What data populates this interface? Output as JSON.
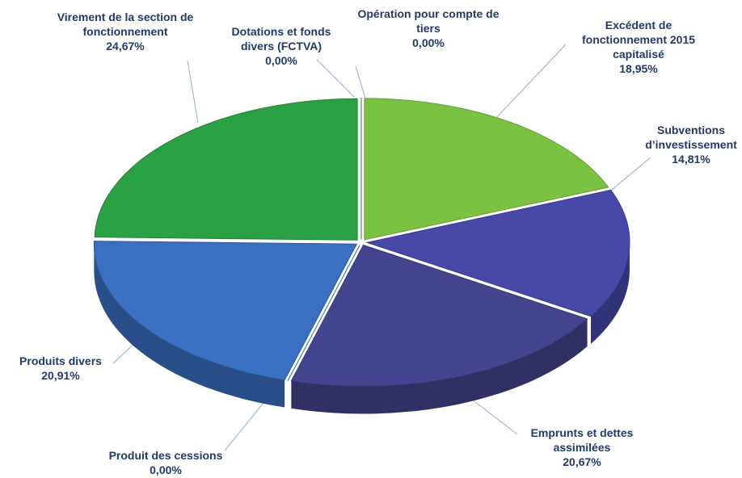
{
  "chart_data": {
    "type": "pie3d",
    "categories": [
      "Opération pour compte de tiers",
      "Excédent de fonctionnement 2015 capitalisé",
      "Subventions d’investissement",
      "Emprunts et dettes assimilées",
      "Produit des cessions",
      "Produits divers",
      "Virement de la section de fonctionnement",
      "Dotations et fonds divers (FCTVA)"
    ],
    "values": [
      0,
      18.95,
      14.81,
      20.67,
      0,
      20.91,
      24.67,
      0
    ],
    "value_labels": [
      "0,00%",
      "18,95%",
      "14,81%",
      "20,67%",
      "0,00%",
      "20,91%",
      "24,67%",
      "0,00%"
    ],
    "colors": [
      "#7fb8e0",
      "#7cc242",
      "#4848a8",
      "#45458f",
      "#2f8fd0",
      "#3b6fc2",
      "#2ba145",
      "#2ba145"
    ]
  }
}
